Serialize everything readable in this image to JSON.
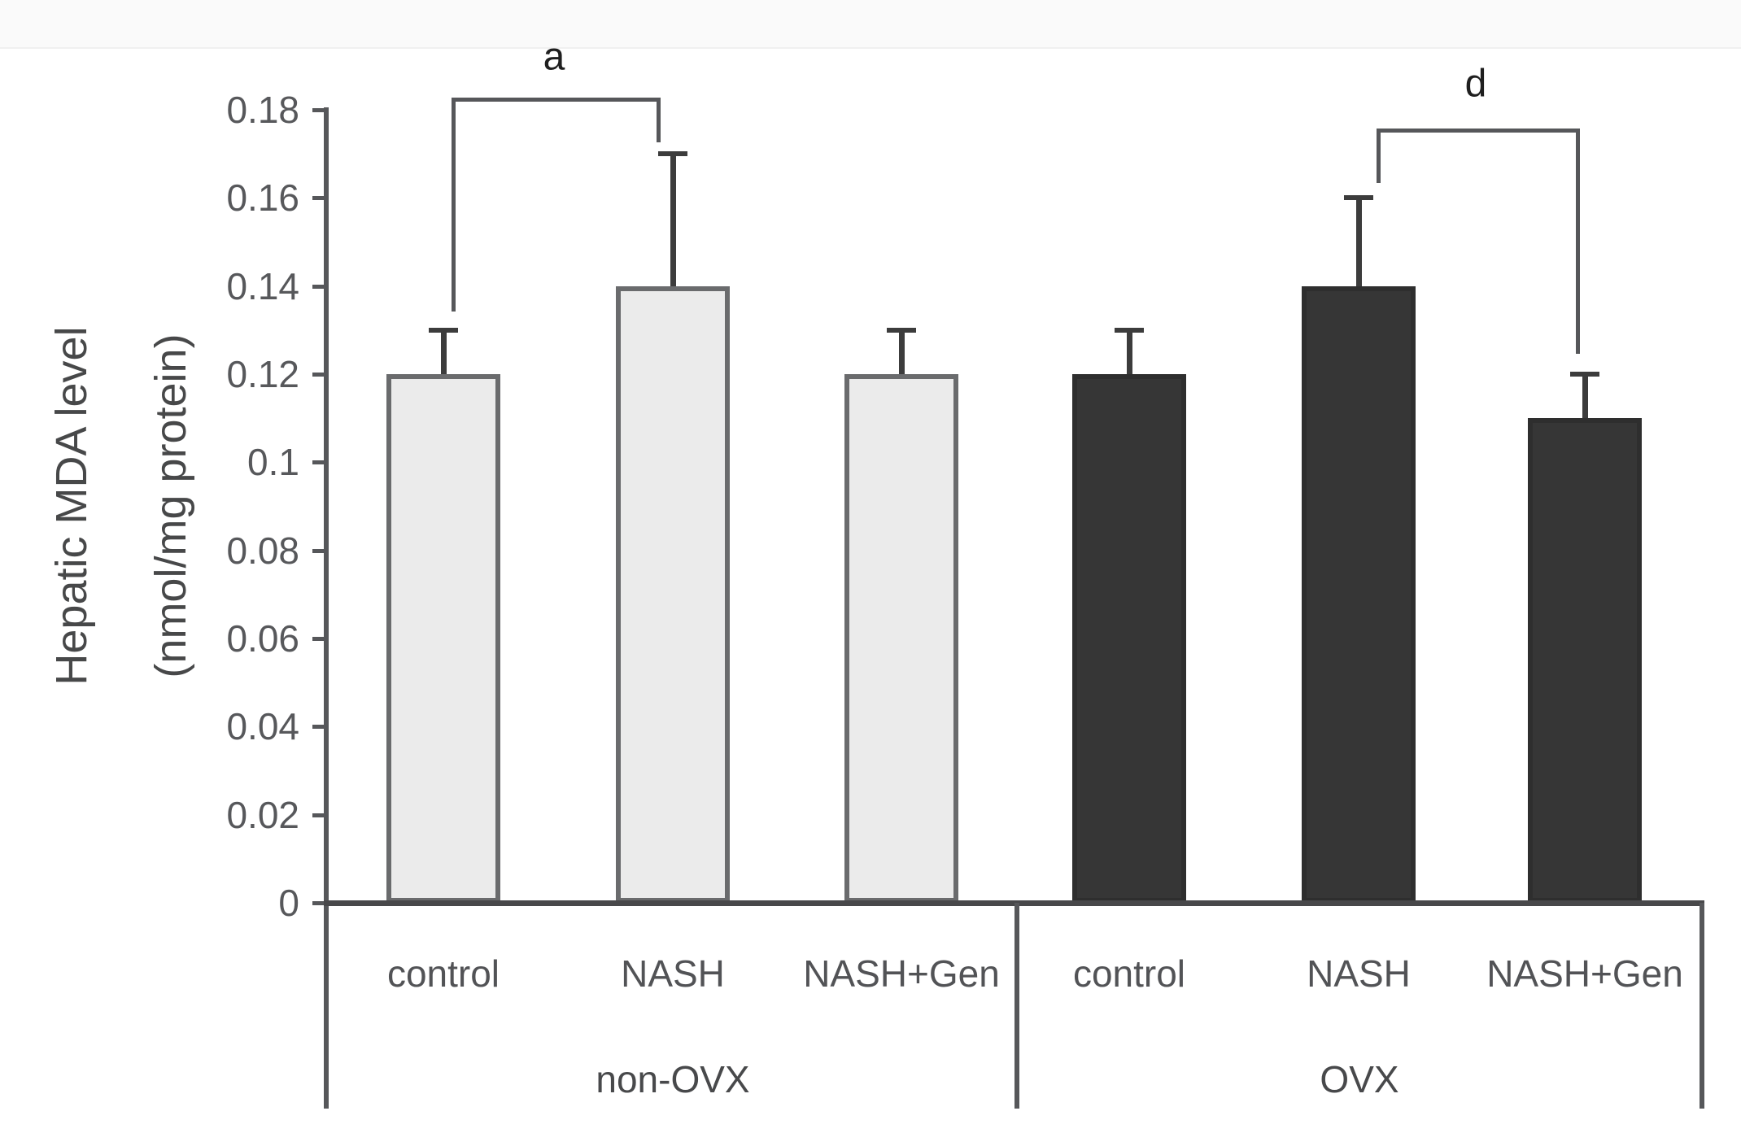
{
  "figure": {
    "y_axis_title": {
      "line1": "Hepatic MDA level",
      "line2": "(nmol/mg protein)"
    }
  },
  "chart_data": {
    "type": "bar",
    "title": "",
    "ylabel": "Hepatic MDA level (nmol/mg protein)",
    "xlabel": "",
    "ylim": [
      0,
      0.18
    ],
    "grid": false,
    "legend": "none",
    "ytick_values": [
      0,
      0.02,
      0.04,
      0.06,
      0.08,
      0.1,
      0.12,
      0.14,
      0.16,
      0.18
    ],
    "ytick_labels": [
      "0",
      "0.02",
      "0.04",
      "0.06",
      "0.08",
      "0.1",
      "0.12",
      "0.14",
      "0.16",
      "0.18"
    ],
    "groups": [
      {
        "label": "non-OVX",
        "fill": "#ebebeb",
        "border": "#6a6b6d",
        "bars": [
          {
            "label": "control",
            "value": 0.12,
            "error": 0.01
          },
          {
            "label": "NASH",
            "value": 0.14,
            "error": 0.03
          },
          {
            "label": "NASH+Gen",
            "value": 0.12,
            "error": 0.01
          }
        ]
      },
      {
        "label": "OVX",
        "fill": "#363636",
        "border": "#2e2e2e",
        "bars": [
          {
            "label": "control",
            "value": 0.12,
            "error": 0.01
          },
          {
            "label": "NASH",
            "value": 0.14,
            "error": 0.02
          },
          {
            "label": "NASH+Gen",
            "value": 0.11,
            "error": 0.01
          }
        ]
      }
    ],
    "annotations": [
      {
        "label": "a",
        "connects": [
          "non-OVX/control",
          "non-OVX/NASH"
        ]
      },
      {
        "label": "d",
        "connects": [
          "OVX/NASH",
          "OVX/NASH+Gen"
        ]
      }
    ],
    "colors": {
      "axis": "#56575a",
      "baseline": "#48484a",
      "error_bar": "#3c3c3c",
      "bracket": "#56575a",
      "tick_text": "#57585b",
      "label_text": "#525356"
    }
  }
}
